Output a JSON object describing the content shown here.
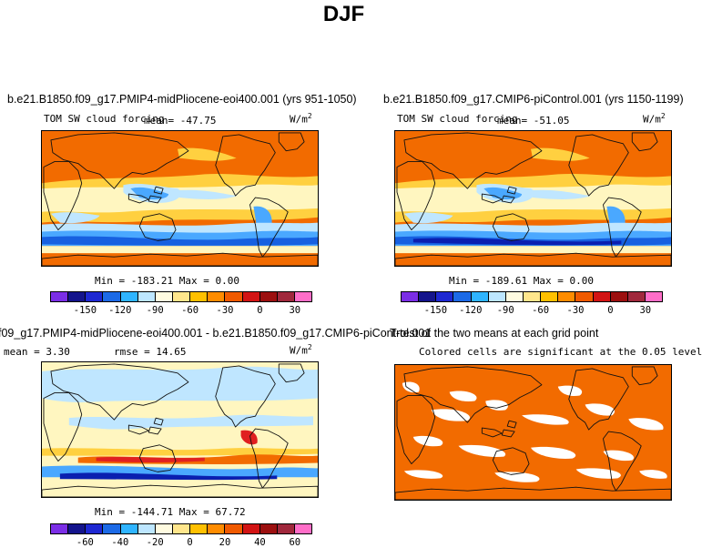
{
  "figure_title": "DJF",
  "colors": {
    "ocean_orange": "#f26b00",
    "yellow": "#ffd040",
    "pale_yellow": "#fff6c0",
    "light_blue": "#bfe6ff",
    "mid_blue": "#4aa8ff",
    "blue": "#1760e0",
    "dark_blue": "#0a1fb0",
    "white": "#ffffff",
    "red": "#e02020",
    "coast": "#111111"
  },
  "panels": [
    {
      "title": "b.e21.B1850.f09_g17.PMIP4-midPliocene-eoi400.001 (yrs 951-1050)",
      "variable": "TOM SW cloud forcing",
      "mean_label": "mean= -47.75",
      "units": "W/m",
      "units_sup": "2",
      "minmax": "Min = -183.21 Max =   0.00",
      "colorbar": {
        "ticks": [
          "-150",
          "-120",
          "-90",
          "-60",
          "-30",
          "0",
          "30"
        ],
        "colors": [
          "#7b2ee6",
          "#14148c",
          "#1e28d2",
          "#1c6ae6",
          "#2fb4ff",
          "#bde6ff",
          "#fffbe0",
          "#ffe68c",
          "#ffc000",
          "#ff8c00",
          "#f05a00",
          "#d21414",
          "#9c1010",
          "#a0283c",
          "#ff6ec8"
        ]
      }
    },
    {
      "title": "b.e21.B1850.f09_g17.CMIP6-piControl.001 (yrs 1150-1199)",
      "variable": "TOM SW cloud forcing",
      "mean_label": "mean= -51.05",
      "units": "W/m",
      "units_sup": "2",
      "minmax": "Min = -189.61 Max =   0.00",
      "colorbar": {
        "ticks": [
          "-150",
          "-120",
          "-90",
          "-60",
          "-30",
          "0",
          "30"
        ],
        "colors": [
          "#7b2ee6",
          "#14148c",
          "#1e28d2",
          "#1c6ae6",
          "#2fb4ff",
          "#bde6ff",
          "#fffbe0",
          "#ffe68c",
          "#ffc000",
          "#ff8c00",
          "#f05a00",
          "#d21414",
          "#9c1010",
          "#a0283c",
          "#ff6ec8"
        ]
      }
    },
    {
      "title": "f09_g17.PMIP4-midPliocene-eoi400.001 - b.e21.B1850.f09_g17.CMIP6-piControl.001",
      "mean_label": "mean =   3.30",
      "rmse_label": "rmse =  14.65",
      "units": "W/m",
      "units_sup": "2",
      "minmax": "Min = -144.71 Max =  67.72",
      "colorbar": {
        "ticks": [
          "-60",
          "-40",
          "-20",
          "0",
          "20",
          "40",
          "60"
        ],
        "colors": [
          "#7b2ee6",
          "#14148c",
          "#1e28d2",
          "#1c6ae6",
          "#2fb4ff",
          "#bde6ff",
          "#fffbe0",
          "#ffe68c",
          "#ffc000",
          "#ff8c00",
          "#f05a00",
          "#d21414",
          "#9c1010",
          "#a0283c",
          "#ff6ec8"
        ]
      }
    },
    {
      "title": "T-test of the two means at each grid point",
      "subtitle": "Colored cells are significant at the 0.05 level"
    }
  ]
}
